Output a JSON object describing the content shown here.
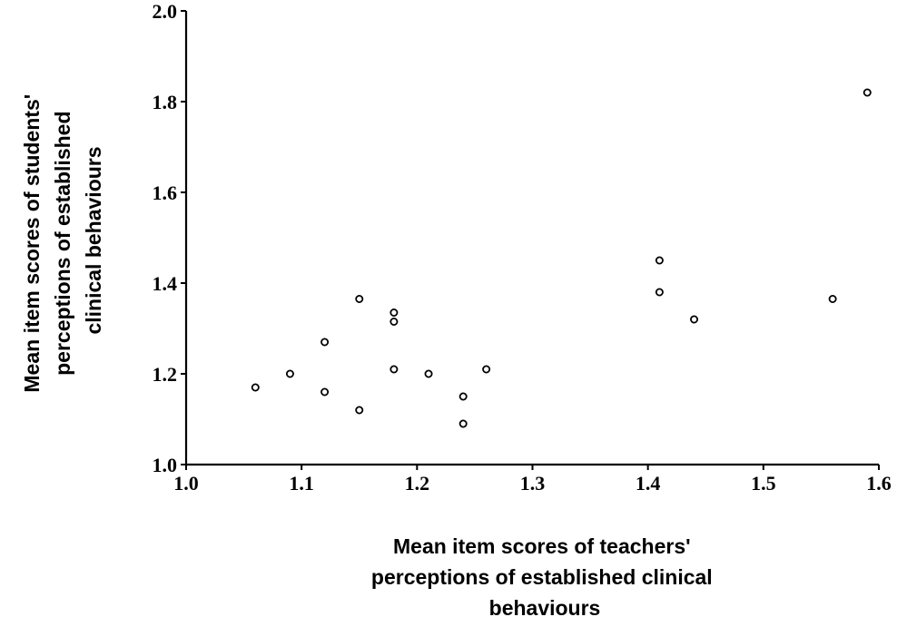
{
  "chart_data": {
    "type": "scatter",
    "title": "",
    "xlabel": [
      "Mean item scores of teachers'",
      "perceptions of established clinical",
      "behaviours"
    ],
    "ylabel": [
      "Mean item scores of students'",
      "perceptions of established",
      "clinical behaviours"
    ],
    "xlim": [
      1.0,
      1.6
    ],
    "ylim": [
      1.0,
      2.0
    ],
    "grid": false,
    "x_ticks": [
      "1.0",
      "1.1",
      "1.2",
      "1.3",
      "1.4",
      "1.5",
      "1.6"
    ],
    "y_ticks": [
      "1.0",
      "1.2",
      "1.4",
      "1.6",
      "1.8",
      "2.0"
    ],
    "series": [
      {
        "points": [
          {
            "x": 1.06,
            "y": 1.17
          },
          {
            "x": 1.09,
            "y": 1.2
          },
          {
            "x": 1.12,
            "y": 1.27
          },
          {
            "x": 1.12,
            "y": 1.16
          },
          {
            "x": 1.15,
            "y": 1.365
          },
          {
            "x": 1.15,
            "y": 1.12
          },
          {
            "x": 1.18,
            "y": 1.335
          },
          {
            "x": 1.18,
            "y": 1.315
          },
          {
            "x": 1.18,
            "y": 1.21
          },
          {
            "x": 1.21,
            "y": 1.2
          },
          {
            "x": 1.24,
            "y": 1.15
          },
          {
            "x": 1.24,
            "y": 1.09
          },
          {
            "x": 1.26,
            "y": 1.21
          },
          {
            "x": 1.41,
            "y": 1.45
          },
          {
            "x": 1.41,
            "y": 1.38
          },
          {
            "x": 1.44,
            "y": 1.32
          },
          {
            "x": 1.56,
            "y": 1.365
          },
          {
            "x": 1.59,
            "y": 1.82
          }
        ]
      }
    ]
  }
}
